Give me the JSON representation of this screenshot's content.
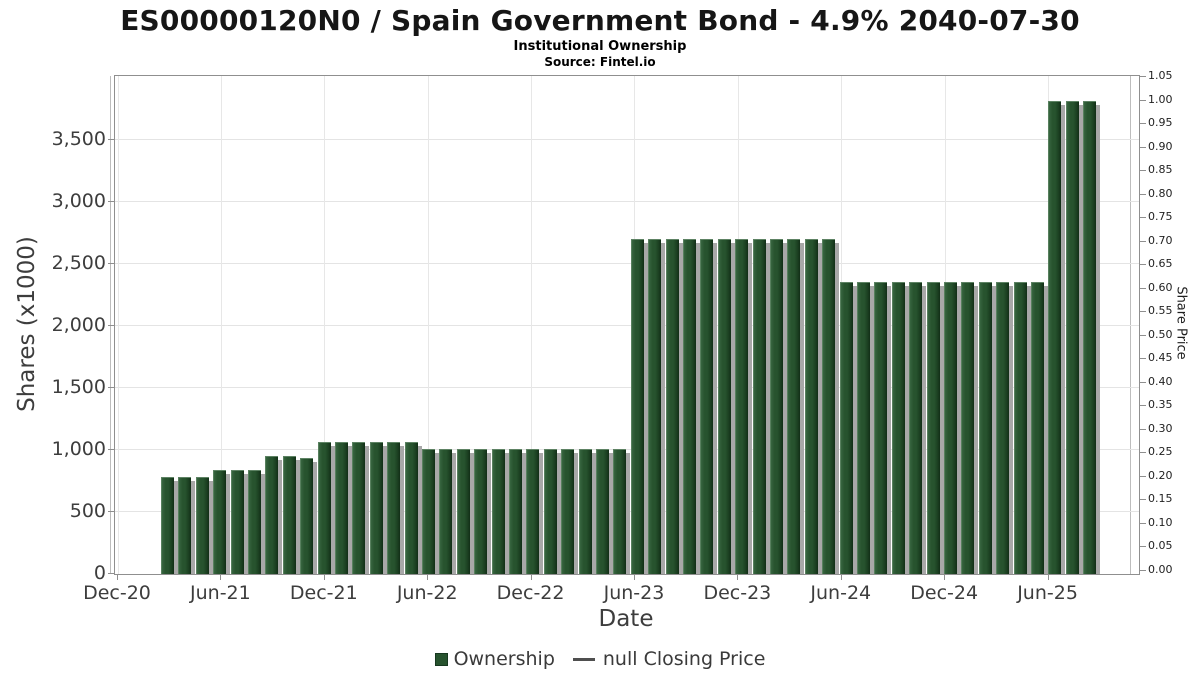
{
  "title": "ES00000120N0 / Spain Government Bond - 4.9% 2040-07-30",
  "subtitle": "Institutional Ownership",
  "source": "Source: Fintel.io",
  "legend": {
    "ownership_label": "Ownership",
    "closing_price_label": "null Closing Price"
  },
  "colors": {
    "bar_green": "#27532e",
    "bar_shadow": "#a8a8a8",
    "grid": "#e4e4e4",
    "axis_frame": "#8f8f8f",
    "tick_text": "#3d3d3d"
  },
  "chart_data": {
    "type": "bar",
    "title": "ES00000120N0 / Spain Government Bond - 4.9% 2040-07-30",
    "subtitle": "Institutional Ownership",
    "source": "Source: Fintel.io",
    "xlabel": "Date",
    "ylabel_left": "Shares (x1000)",
    "ylabel_right": "Share Price",
    "grid": true,
    "legend_position": "bottom",
    "ylim_left": [
      0,
      4016
    ],
    "ylim_right": [
      0,
      1.05
    ],
    "x": [
      "Mar-21",
      "Apr-21",
      "May-21",
      "Jun-21",
      "Jul-21",
      "Aug-21",
      "Sep-21",
      "Oct-21",
      "Nov-21",
      "Dec-21",
      "Jan-22",
      "Feb-22",
      "Mar-22",
      "Apr-22",
      "May-22",
      "Jun-22",
      "Jul-22",
      "Aug-22",
      "Sep-22",
      "Oct-22",
      "Nov-22",
      "Dec-22",
      "Jan-23",
      "Feb-23",
      "Mar-23",
      "Apr-23",
      "May-23",
      "Jun-23",
      "Jul-23",
      "Aug-23",
      "Sep-23",
      "Oct-23",
      "Nov-23",
      "Dec-23",
      "Jan-24",
      "Feb-24",
      "Mar-24",
      "Apr-24",
      "May-24",
      "Jun-24",
      "Jul-24",
      "Aug-24",
      "Sep-24",
      "Oct-24",
      "Nov-24",
      "Dec-24",
      "Jan-25",
      "Feb-25",
      "Mar-25",
      "Apr-25",
      "May-25",
      "Jun-25",
      "Jul-25",
      "Aug-25"
    ],
    "series": [
      {
        "name": "Ownership",
        "type": "bar",
        "color": "#27532e",
        "values": [
          775,
          775,
          775,
          835,
          835,
          835,
          940,
          940,
          930,
          1055,
          1055,
          1055,
          1055,
          1055,
          1055,
          1000,
          1000,
          1000,
          1000,
          1000,
          1000,
          1000,
          1000,
          1000,
          1000,
          1000,
          1000,
          2690,
          2690,
          2690,
          2690,
          2690,
          2690,
          2690,
          2690,
          2690,
          2690,
          2690,
          2690,
          2345,
          2345,
          2345,
          2345,
          2345,
          2345,
          2345,
          2345,
          2345,
          2345,
          2345,
          2345,
          3805,
          3805,
          3805
        ]
      },
      {
        "name": "null Closing Price",
        "type": "line",
        "values": null
      }
    ],
    "x_ticks": [
      {
        "label": "Dec-20",
        "month_offset": -3
      },
      {
        "label": "Jun-21",
        "month_offset": 3
      },
      {
        "label": "Dec-21",
        "month_offset": 9
      },
      {
        "label": "Jun-22",
        "month_offset": 15
      },
      {
        "label": "Dec-22",
        "month_offset": 21
      },
      {
        "label": "Jun-23",
        "month_offset": 27
      },
      {
        "label": "Dec-23",
        "month_offset": 33
      },
      {
        "label": "Jun-24",
        "month_offset": 39
      },
      {
        "label": "Dec-24",
        "month_offset": 45
      },
      {
        "label": "Jun-25",
        "month_offset": 51
      }
    ],
    "y_left_ticks": [
      {
        "v": 0,
        "label": "0"
      },
      {
        "v": 500,
        "label": "500"
      },
      {
        "v": 1000,
        "label": "1,000"
      },
      {
        "v": 1500,
        "label": "1,500"
      },
      {
        "v": 2000,
        "label": "2,000"
      },
      {
        "v": 2500,
        "label": "2,500"
      },
      {
        "v": 3000,
        "label": "3,000"
      },
      {
        "v": 3500,
        "label": "3,500"
      }
    ],
    "y_right_ticks": [
      {
        "v": 1.05,
        "label": "1.05"
      },
      {
        "v": 1.0,
        "label": "1.00"
      },
      {
        "v": 0.95,
        "label": "0.95"
      },
      {
        "v": 0.9,
        "label": "0.90"
      },
      {
        "v": 0.85,
        "label": "0.85"
      },
      {
        "v": 0.8,
        "label": "0.80"
      },
      {
        "v": 0.75,
        "label": "0.75"
      },
      {
        "v": 0.7,
        "label": "0.70"
      },
      {
        "v": 0.65,
        "label": "0.65"
      },
      {
        "v": 0.6,
        "label": "0.60"
      },
      {
        "v": 0.55,
        "label": "0.55"
      },
      {
        "v": 0.5,
        "label": "0.50"
      },
      {
        "v": 0.45,
        "label": "0.45"
      },
      {
        "v": 0.4,
        "label": "0.40"
      },
      {
        "v": 0.35,
        "label": "0.35"
      },
      {
        "v": 0.3,
        "label": "0.30"
      },
      {
        "v": 0.25,
        "label": "0.25"
      },
      {
        "v": 0.2,
        "label": "0.20"
      },
      {
        "v": 0.15,
        "label": "0.15"
      },
      {
        "v": 0.1,
        "label": "0.10"
      },
      {
        "v": 0.05,
        "label": "0.05"
      },
      {
        "v": 0.0,
        "label": "0.00"
      }
    ]
  }
}
